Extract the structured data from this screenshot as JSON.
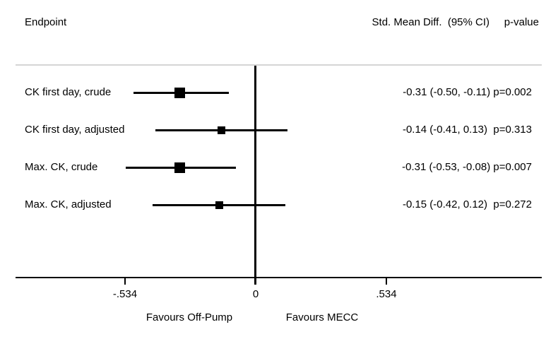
{
  "header": {
    "endpoint": "Endpoint",
    "effect": "Std. Mean Diff.  (95% CI)",
    "pvalue": "p-value"
  },
  "chart_data": {
    "type": "forest",
    "title": "",
    "xlabel": "",
    "ylabel": "Endpoint",
    "rows": [
      {
        "label": "CK first day, crude",
        "estimate": -0.31,
        "ci_low": -0.5,
        "ci_high": -0.11,
        "p_value": 0.002,
        "display": "-0.31 (-0.50, -0.11) p=0.002",
        "marker_size": 15
      },
      {
        "label": "CK first day, adjusted",
        "estimate": -0.14,
        "ci_low": -0.41,
        "ci_high": 0.13,
        "p_value": 0.313,
        "display": "-0.14 (-0.41, 0.13)  p=0.313",
        "marker_size": 11
      },
      {
        "label": "Max. CK, crude",
        "estimate": -0.31,
        "ci_low": -0.53,
        "ci_high": -0.08,
        "p_value": 0.007,
        "display": "-0.31 (-0.53, -0.08) p=0.007",
        "marker_size": 15
      },
      {
        "label": "Max. CK, adjusted",
        "estimate": -0.15,
        "ci_low": -0.42,
        "ci_high": 0.12,
        "p_value": 0.272,
        "display": "-0.15 (-0.42, 0.12)  p=0.272",
        "marker_size": 11
      }
    ],
    "x_axis": {
      "ticks": [
        -0.534,
        0,
        0.534
      ],
      "tick_labels": [
        "-.534",
        "0",
        ".534"
      ],
      "zero_reference_line": true,
      "left_label": "Favours Off-Pump",
      "right_label": "Favours MECC",
      "xlim": [
        -0.98,
        1.17
      ]
    },
    "legend": null,
    "grid": false,
    "colors": {
      "line": "#000000",
      "marker": "#000000",
      "separator": "#d5d5d5",
      "text": "#000000",
      "background": "#ffffff"
    }
  }
}
